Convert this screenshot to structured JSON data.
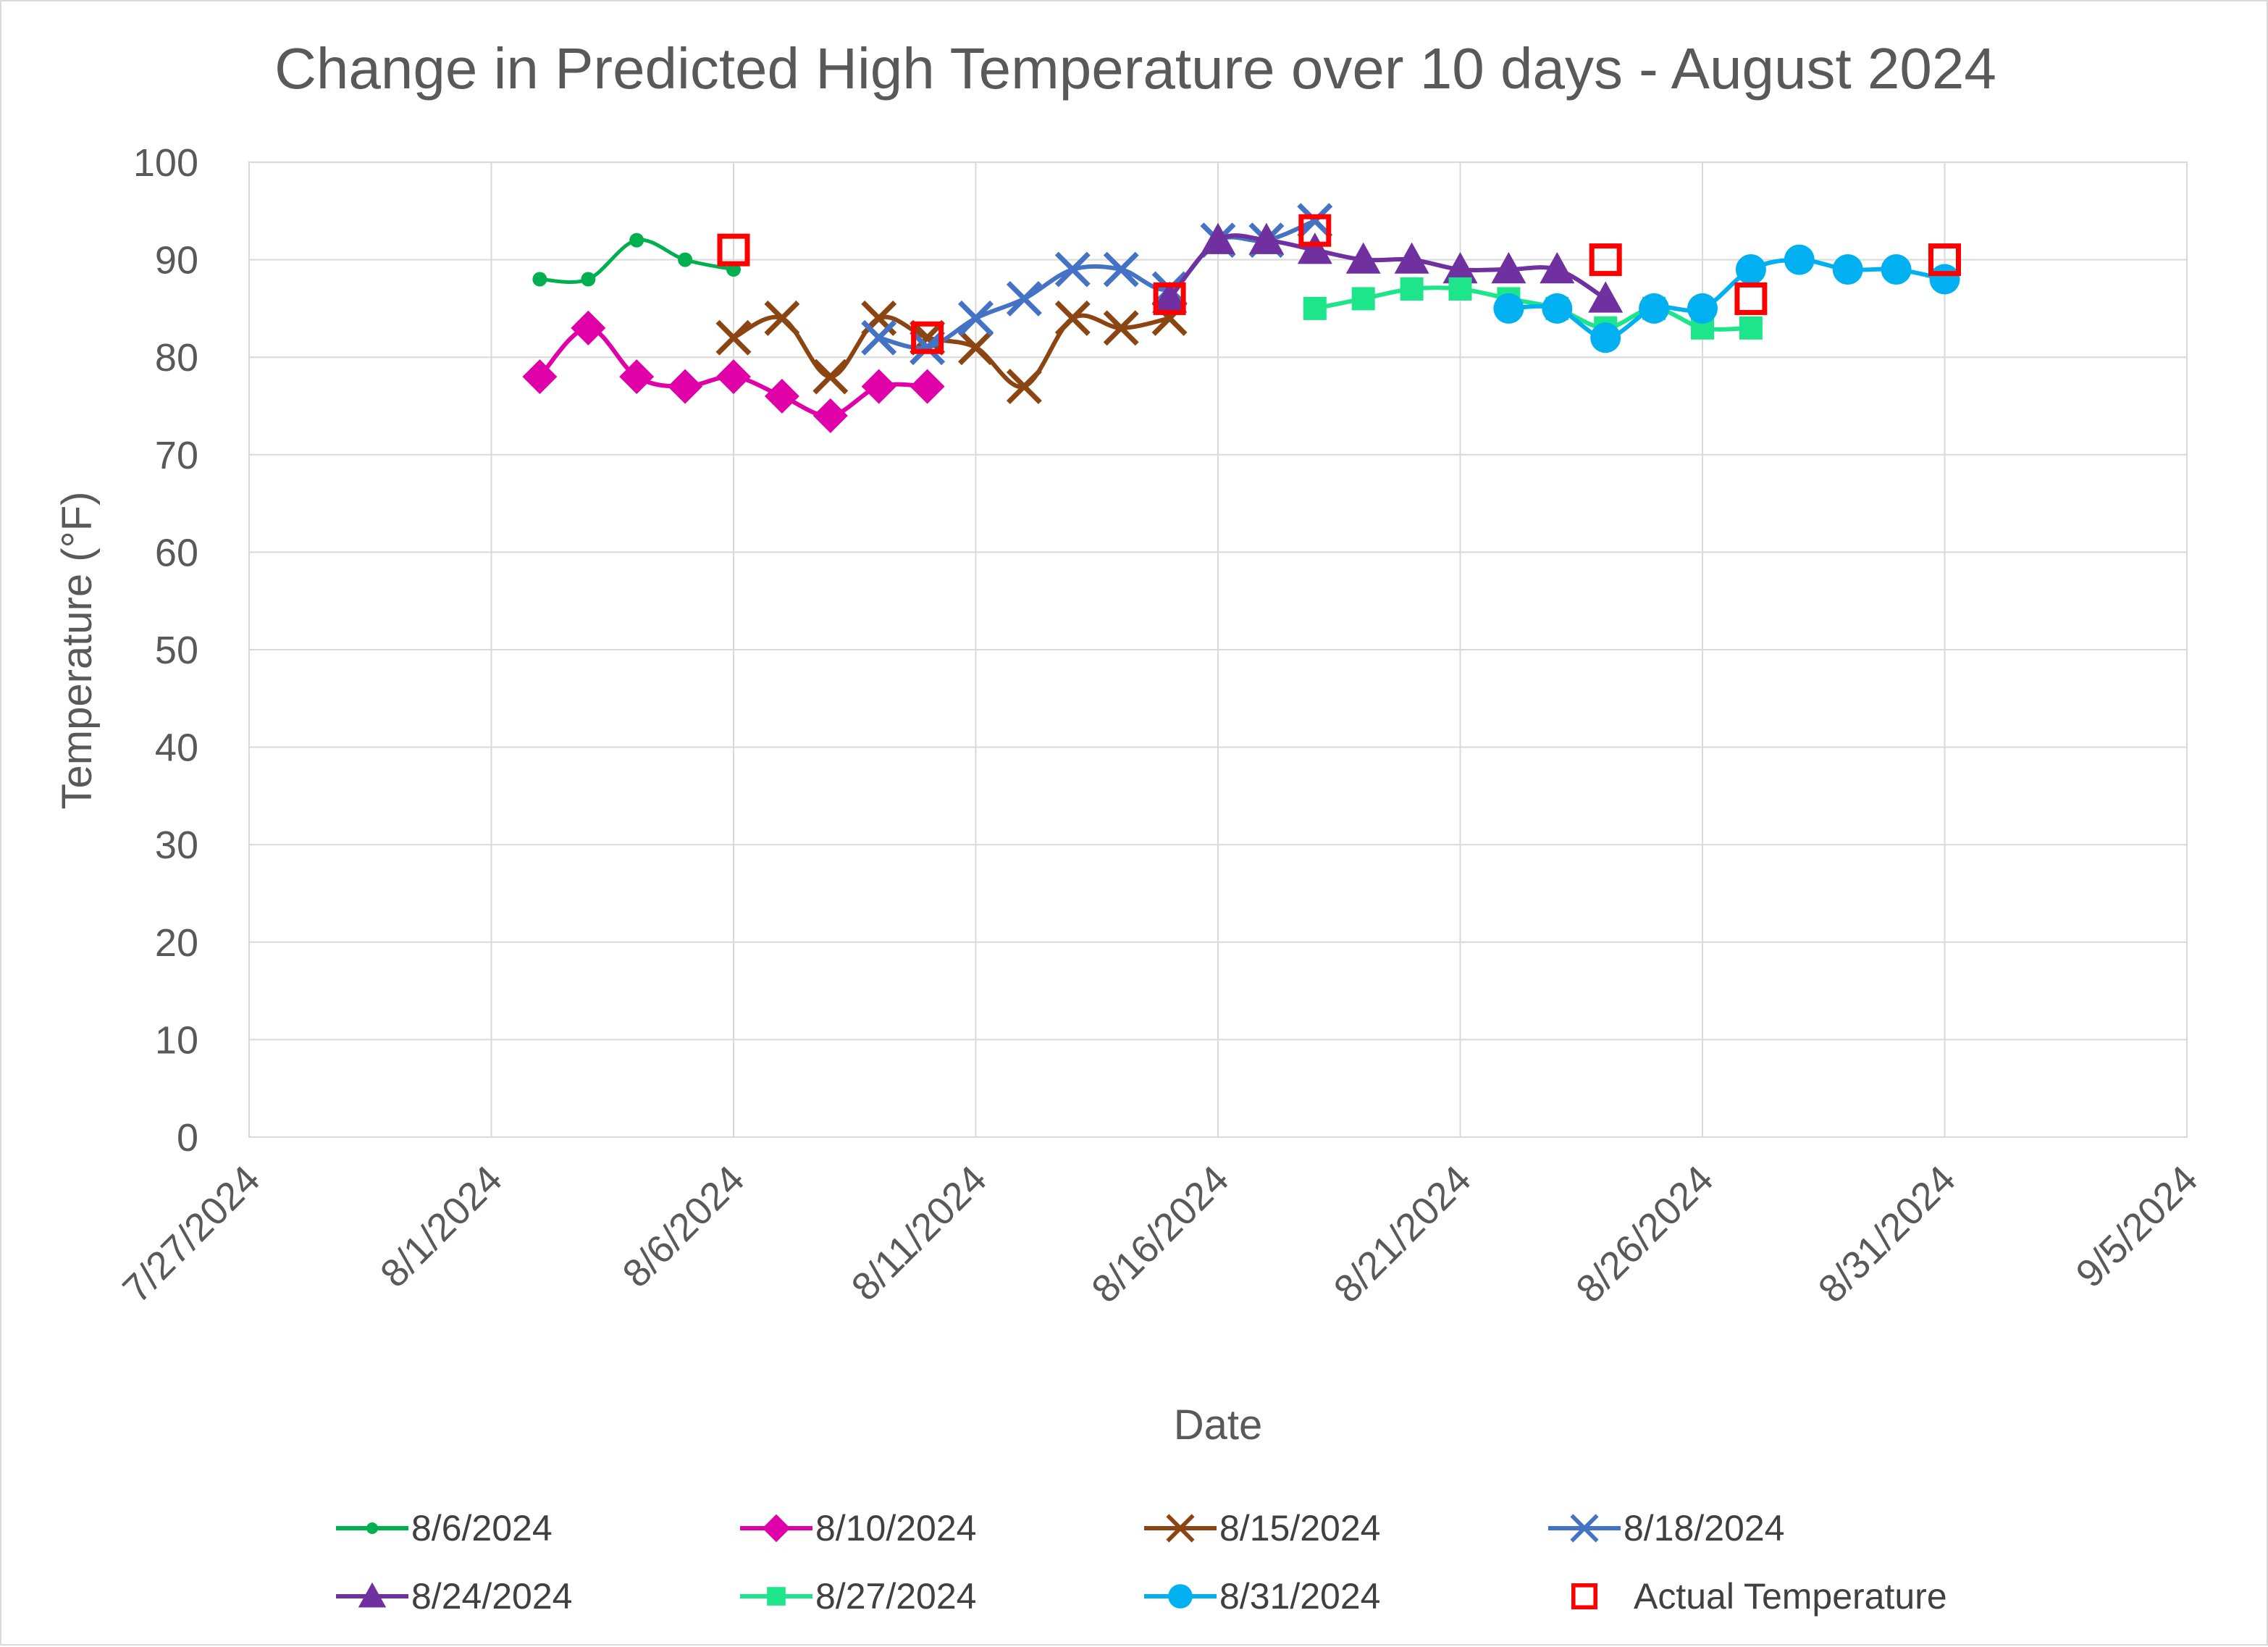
{
  "chart_data": {
    "type": "line",
    "title": "Change in Predicted High Temperature over 10 days - August 2024",
    "xlabel": "Date",
    "ylabel": "Temperature (°F)",
    "x_ticks": [
      "7/27/2024",
      "8/1/2024",
      "8/6/2024",
      "8/11/2024",
      "8/16/2024",
      "8/21/2024",
      "8/26/2024",
      "8/31/2024",
      "9/5/2024"
    ],
    "y_ticks": [
      "0",
      "10",
      "20",
      "30",
      "40",
      "50",
      "60",
      "70",
      "80",
      "90",
      "100"
    ],
    "ylim": [
      0,
      100
    ],
    "xlim_days_since_7_27": [
      0,
      40
    ],
    "grid": true,
    "legend_position": "bottom",
    "series": [
      {
        "name": "8/6/2024",
        "color": "#00B050",
        "marker": "circle-small",
        "smooth": true,
        "days": [
          6,
          7,
          8,
          9,
          10
        ],
        "values": [
          88,
          88,
          92,
          90,
          89
        ]
      },
      {
        "name": "8/10/2024",
        "color": "#E000A8",
        "marker": "diamond",
        "smooth": true,
        "days": [
          6,
          7,
          8,
          9,
          10,
          11,
          12,
          13,
          14
        ],
        "values": [
          78,
          83,
          78,
          77,
          78,
          76,
          74,
          77,
          77
        ]
      },
      {
        "name": "8/15/2024",
        "color": "#8B4513",
        "marker": "x",
        "smooth": true,
        "days": [
          10,
          11,
          12,
          13,
          14,
          15,
          16,
          17,
          18,
          19
        ],
        "values": [
          82,
          84,
          78,
          84,
          82,
          81,
          77,
          84,
          83,
          84
        ]
      },
      {
        "name": "8/18/2024",
        "color": "#4472C4",
        "marker": "x",
        "smooth": true,
        "days": [
          13,
          14,
          15,
          16,
          17,
          18,
          19,
          20,
          21,
          22
        ],
        "values": [
          82,
          81,
          84,
          86,
          89,
          89,
          87,
          92,
          92,
          94
        ]
      },
      {
        "name": "8/24/2024",
        "color": "#7030A0",
        "marker": "triangle",
        "smooth": true,
        "days": [
          19,
          20,
          21,
          22,
          23,
          24,
          25,
          26,
          27,
          28
        ],
        "values": [
          86,
          92,
          92,
          91,
          90,
          90,
          89,
          89,
          89,
          86
        ]
      },
      {
        "name": "8/27/2024",
        "color": "#1DE58A",
        "marker": "square",
        "smooth": true,
        "days": [
          22,
          23,
          24,
          25,
          26,
          27,
          28,
          29,
          30,
          31
        ],
        "values": [
          85,
          86,
          87,
          87,
          86,
          85,
          83,
          85,
          83,
          83
        ]
      },
      {
        "name": "8/31/2024",
        "color": "#00B0F0",
        "marker": "circle",
        "smooth": true,
        "days": [
          26,
          27,
          28,
          29,
          30,
          31,
          32,
          33,
          34,
          35
        ],
        "values": [
          85,
          85,
          82,
          85,
          85,
          89,
          90,
          89,
          89,
          88
        ]
      },
      {
        "name": "Actual Temperature",
        "color": "#FF0000",
        "marker": "square-open",
        "line": false,
        "days": [
          10,
          14,
          19,
          22,
          28,
          31,
          35
        ],
        "values": [
          91,
          82,
          86,
          93,
          90,
          86,
          90
        ]
      }
    ]
  }
}
